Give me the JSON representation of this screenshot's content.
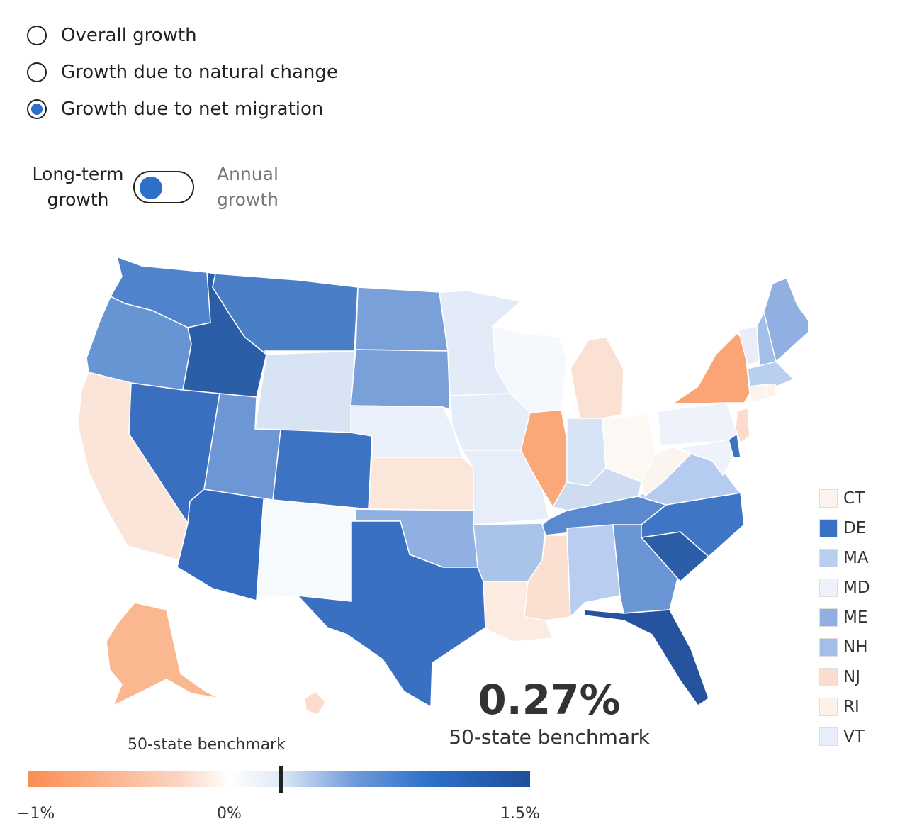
{
  "controls": {
    "options": [
      {
        "label": "Overall growth",
        "selected": false
      },
      {
        "label": "Growth due to natural change",
        "selected": false
      },
      {
        "label": "Growth due to net migration",
        "selected": true
      }
    ],
    "toggle": {
      "left_label_1": "Long-term",
      "left_label_2": "growth",
      "right_label_1": "Annual",
      "right_label_2": "growth",
      "active": "left"
    }
  },
  "benchmark": {
    "value": "0.27%",
    "label": "50-state benchmark",
    "scale_label": "50-state benchmark",
    "marker_value": 0.27
  },
  "color_scale": {
    "min": -1,
    "zero": 0,
    "max": 1.5,
    "tick_labels": [
      "−1%",
      "0%",
      "1.5%"
    ]
  },
  "small_states_legend": [
    {
      "abbr": "CT",
      "color": "#fdf3ee"
    },
    {
      "abbr": "DE",
      "color": "#3b72c4"
    },
    {
      "abbr": "MA",
      "color": "#b9cff0"
    },
    {
      "abbr": "MD",
      "color": "#eef3fb"
    },
    {
      "abbr": "ME",
      "color": "#8fb0e0"
    },
    {
      "abbr": "NH",
      "color": "#a3bfe7"
    },
    {
      "abbr": "NJ",
      "color": "#fbdccf"
    },
    {
      "abbr": "RI",
      "color": "#fdf1ea"
    },
    {
      "abbr": "VT",
      "color": "#e7eef9"
    }
  ],
  "state_colors": {
    "WA": "#5083cb",
    "OR": "#6794d3",
    "CA": "#fbe4d8",
    "ID": "#2c5ea8",
    "NV": "#3a6fc0",
    "MT": "#4a7fc8",
    "WY": "#d8e4f4",
    "UT": "#6c97d4",
    "AZ": "#356bbf",
    "CO": "#3e73c3",
    "NM": "#f7fafd",
    "ND": "#7aa0da",
    "SD": "#7aa0da",
    "NE": "#e9f0fa",
    "KS": "#fbe6da",
    "OK": "#8fb0e0",
    "TX": "#3a70c2",
    "MN": "#e3ebf8",
    "IA": "#e5edf9",
    "MO": "#e7eef9",
    "AR": "#a9c3e9",
    "LA": "#fcebe1",
    "WI": "#f5f8fd",
    "IL": "#fba878",
    "IN": "#d7e4f5",
    "MI": "#fbe1d4",
    "OH": "#fcf8f4",
    "KY": "#cedcf2",
    "TN": "#5a89cf",
    "MS": "#fbe0d2",
    "AL": "#b8cdef",
    "GA": "#6b96d5",
    "FL": "#26539d",
    "SC": "#2c5ea8",
    "NC": "#3f75c5",
    "VA": "#b5cbef",
    "WV": "#fcf4ef",
    "PA": "#eef3fb",
    "NY": "#fba576",
    "ME": "#8fb0e0",
    "NH": "#a3bfe7",
    "VT": "#e7eef9",
    "MA": "#b9cff0",
    "RI": "#fdf1ea",
    "CT": "#fdf3ee",
    "NJ": "#fbdccf",
    "DE": "#3b72c4",
    "MD": "#eef3fb",
    "AK": "#fbb890",
    "HI": "#fbdccb"
  }
}
